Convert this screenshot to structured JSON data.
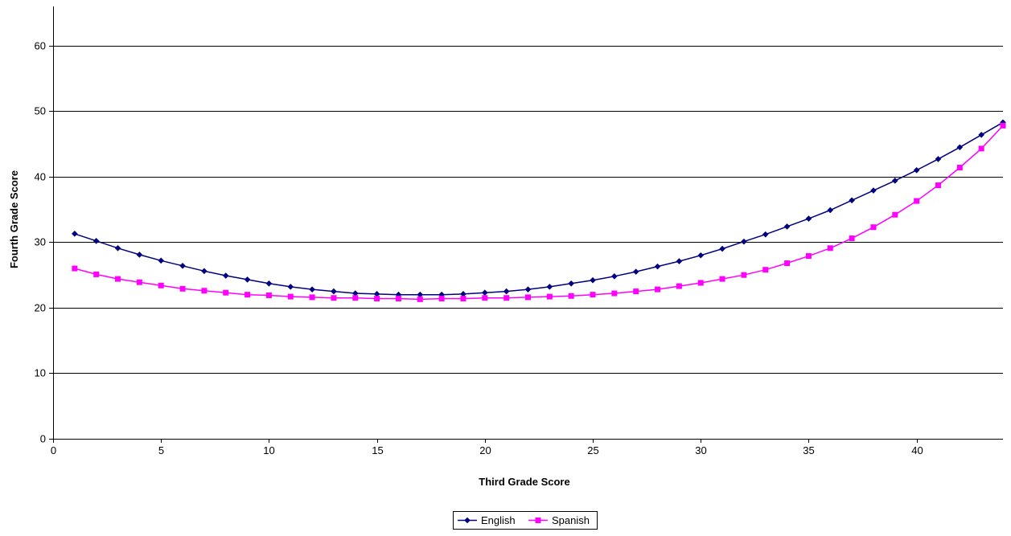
{
  "chart_data": {
    "type": "line",
    "title": "",
    "xlabel": "Third Grade Score",
    "ylabel": "Fourth Grade Score",
    "xlim": [
      0,
      44
    ],
    "ylim": [
      0,
      66
    ],
    "x_ticks": [
      0,
      5,
      10,
      15,
      20,
      25,
      30,
      35,
      40
    ],
    "y_ticks": [
      0,
      10,
      20,
      30,
      40,
      50,
      60
    ],
    "grid": "horizontal",
    "legend_position": "bottom",
    "x": [
      1,
      2,
      3,
      4,
      5,
      6,
      7,
      8,
      9,
      10,
      11,
      12,
      13,
      14,
      15,
      16,
      17,
      18,
      19,
      20,
      21,
      22,
      23,
      24,
      25,
      26,
      27,
      28,
      29,
      30,
      31,
      32,
      33,
      34,
      35,
      36,
      37,
      38,
      39,
      40,
      41,
      42,
      43,
      44
    ],
    "series": [
      {
        "name": "English",
        "color": "#000080",
        "marker": "diamond",
        "values": [
          31.3,
          30.2,
          29.1,
          28.1,
          27.2,
          26.4,
          25.6,
          24.9,
          24.3,
          23.7,
          23.2,
          22.8,
          22.5,
          22.2,
          22.1,
          22.0,
          22.0,
          22.0,
          22.1,
          22.3,
          22.5,
          22.8,
          23.2,
          23.7,
          24.2,
          24.8,
          25.5,
          26.3,
          27.1,
          28.0,
          29.0,
          30.1,
          31.2,
          32.4,
          33.6,
          34.9,
          36.4,
          37.9,
          39.4,
          41.0,
          42.7,
          44.5,
          46.4,
          48.3
        ]
      },
      {
        "name": "Spanish",
        "color": "#FF00FF",
        "marker": "square",
        "values": [
          26.0,
          25.1,
          24.4,
          23.9,
          23.4,
          22.9,
          22.6,
          22.3,
          22.0,
          21.9,
          21.7,
          21.6,
          21.5,
          21.5,
          21.4,
          21.4,
          21.3,
          21.4,
          21.4,
          21.5,
          21.5,
          21.6,
          21.7,
          21.8,
          22.0,
          22.2,
          22.5,
          22.8,
          23.3,
          23.8,
          24.4,
          25.0,
          25.8,
          26.8,
          27.9,
          29.1,
          30.6,
          32.3,
          34.2,
          36.3,
          38.7,
          41.4,
          44.3,
          47.8
        ]
      }
    ]
  }
}
